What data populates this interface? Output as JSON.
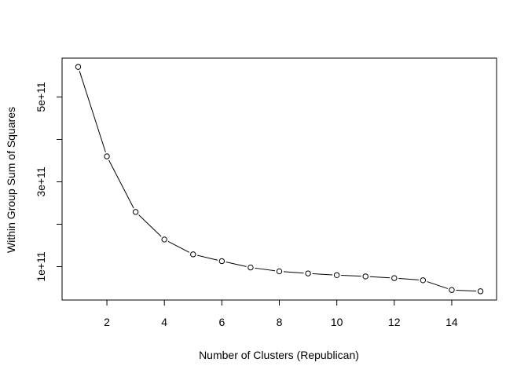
{
  "chart_data": {
    "type": "line",
    "title": "",
    "xlabel": "Number of Clusters (Republican)",
    "ylabel": "Within Group Sum of Squares",
    "x": [
      1,
      2,
      3,
      4,
      5,
      6,
      7,
      8,
      9,
      10,
      11,
      12,
      13,
      14,
      15
    ],
    "series": [
      {
        "values": [
          571000000000.0,
          360000000000.0,
          229000000000.0,
          164000000000.0,
          129000000000.0,
          113000000000.0,
          98000000000.0,
          89000000000.0,
          84000000000.0,
          80000000000.0,
          77000000000.0,
          73000000000.0,
          68000000000.0,
          45000000000.0,
          42000000000.0
        ]
      }
    ],
    "xlim": [
      0.44,
      15.56
    ],
    "ylim": [
      21300000000.0,
      591700000000.0
    ],
    "x_ticks": [
      2,
      4,
      6,
      8,
      10,
      12,
      14
    ],
    "y_ticks": [
      100000000000.0,
      200000000000.0,
      300000000000.0,
      400000000000.0,
      500000000000.0
    ],
    "x_tick_labels": [
      "2",
      "4",
      "6",
      "8",
      "10",
      "12",
      "14"
    ],
    "y_tick_labels": [
      "1e+11",
      "",
      "3e+11",
      "",
      "5e+11"
    ],
    "grid": false,
    "legend": "none",
    "style": "points-and-lines",
    "colors": {
      "line": "#000000",
      "marker_fill": "#ffffff"
    }
  }
}
